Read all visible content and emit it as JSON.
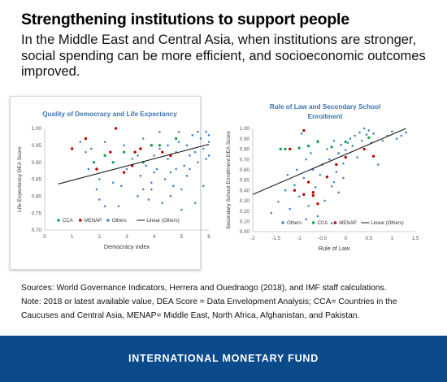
{
  "header": {
    "title": "Strengthening institutions to support people",
    "subtitle": "In the Middle East and Central Asia, when institutions are stronger, social spending can be more efficient, and socioeconomic outcomes improved."
  },
  "notes": {
    "sources": "Sources: World Governance Indicators, Herrera and Ouedraogo (2018), and IMF staff calculations.",
    "note": "Note: 2018 or latest available value, DEA Score = Data Envelopment Analysis; CCA= Countries in the Caucuses and Central Asia, MENAP= Middle East, North Africa, Afghanistan, and Pakistan."
  },
  "footer": {
    "text": "INTERNATIONAL MONETARY FUND"
  },
  "colors": {
    "cca": "#1aa35c",
    "menap": "#c00000",
    "others": "#4a86c5",
    "fit": "#1a1a1a",
    "title_blue": "#3a76b5",
    "footer_bg": "#0b4a8b"
  },
  "chart_data": [
    {
      "type": "scatter",
      "title": "Quality of Democracy and Life Expectancy",
      "xlabel": "Democracy index",
      "ylabel": "Life Expectancy DEA Score",
      "xlim": [
        0,
        6
      ],
      "ylim": [
        0.7,
        1.0
      ],
      "xticks": [
        "0",
        "1",
        "2",
        "3",
        "4",
        "5",
        "6"
      ],
      "yticks": [
        "0.70",
        "0.75",
        "0.80",
        "0.85",
        "0.90",
        "0.95",
        "1.00"
      ],
      "grid": false,
      "legend_position": "bottom-left inside",
      "legend": [
        "CCA",
        "MENAP",
        "Others",
        "Linear (Others)"
      ],
      "series": [
        {
          "name": "CCA",
          "points": [
            [
              1.8,
              0.9
            ],
            [
              2.2,
              0.92
            ],
            [
              2.9,
              0.93
            ],
            [
              3.9,
              0.95
            ],
            [
              4.2,
              0.95
            ],
            [
              4.8,
              0.97
            ],
            [
              3.6,
              0.9
            ],
            [
              2.5,
              0.9
            ]
          ]
        },
        {
          "name": "MENAP",
          "points": [
            [
              1.0,
              0.94
            ],
            [
              1.5,
              0.97
            ],
            [
              1.9,
              0.88
            ],
            [
              2.4,
              0.93
            ],
            [
              2.6,
              1.0
            ],
            [
              2.9,
              0.87
            ],
            [
              3.3,
              0.93
            ],
            [
              3.5,
              0.94
            ],
            [
              3.9,
              0.95
            ],
            [
              4.3,
              0.93
            ],
            [
              4.6,
              0.92
            ],
            [
              3.2,
              0.89
            ]
          ]
        },
        {
          "name": "Others",
          "points": [
            [
              1.3,
              0.96
            ],
            [
              1.5,
              0.93
            ],
            [
              1.6,
              0.88
            ],
            [
              1.9,
              0.82
            ],
            [
              2.0,
              0.79
            ],
            [
              2.0,
              0.85
            ],
            [
              2.2,
              0.96
            ],
            [
              2.5,
              0.84
            ],
            [
              2.8,
              0.83
            ],
            [
              2.7,
              0.77
            ],
            [
              3.0,
              0.88
            ],
            [
              3.2,
              0.91
            ],
            [
              3.4,
              0.92
            ],
            [
              3.5,
              0.86
            ],
            [
              3.6,
              0.82
            ],
            [
              3.6,
              0.97
            ],
            [
              3.7,
              0.89
            ],
            [
              3.8,
              0.79
            ],
            [
              3.9,
              0.84
            ],
            [
              4.0,
              0.92
            ],
            [
              4.1,
              0.88
            ],
            [
              4.2,
              0.94
            ],
            [
              4.3,
              0.78
            ],
            [
              4.4,
              0.85
            ],
            [
              4.5,
              0.95
            ],
            [
              4.5,
              0.91
            ],
            [
              4.6,
              0.87
            ],
            [
              4.7,
              0.83
            ],
            [
              4.8,
              0.93
            ],
            [
              4.9,
              0.96
            ],
            [
              5.0,
              0.76
            ],
            [
              5.0,
              0.82
            ],
            [
              5.1,
              0.89
            ],
            [
              5.2,
              0.95
            ],
            [
              5.3,
              0.92
            ],
            [
              5.4,
              0.98
            ],
            [
              5.5,
              0.93
            ],
            [
              5.6,
              0.9
            ],
            [
              5.7,
              0.97
            ],
            [
              5.8,
              0.94
            ],
            [
              5.9,
              0.99
            ],
            [
              6.0,
              0.96
            ],
            [
              6.0,
              0.92
            ],
            [
              6.0,
              0.98
            ],
            [
              5.6,
              0.99
            ],
            [
              5.3,
              0.88
            ],
            [
              4.9,
              0.99
            ],
            [
              4.2,
              0.99
            ],
            [
              3.9,
              0.82
            ],
            [
              3.4,
              0.8
            ],
            [
              2.2,
              0.77
            ],
            [
              5.8,
              0.83
            ],
            [
              5.5,
              0.78
            ],
            [
              4.6,
              0.8
            ],
            [
              2.9,
              0.95
            ],
            [
              1.7,
              0.94
            ],
            [
              5.9,
              0.91
            ],
            [
              5.2,
              0.86
            ],
            [
              4.0,
              0.87
            ],
            [
              4.8,
              0.88
            ]
          ]
        }
      ],
      "fit": {
        "name": "Linear (Others)",
        "x": [
          0.5,
          6.0
        ],
        "y": [
          0.836,
          0.953
        ]
      }
    },
    {
      "type": "scatter",
      "title": "Rule of Law and Secondary School Enrollment",
      "xlabel": "Rule of Law",
      "ylabel": "Secondary School Enrollment DEA Score",
      "xlim": [
        -2,
        1.5
      ],
      "ylim": [
        0,
        1.0
      ],
      "xticks": [
        "-2",
        "-1.5",
        "-1",
        "-0.5",
        "0",
        "0.5",
        "1",
        "1.5"
      ],
      "yticks": [
        "0.00",
        "0.10",
        "0.20",
        "0.30",
        "0.40",
        "0.50",
        "0.60",
        "0.70",
        "0.80",
        "0.90",
        "1.00"
      ],
      "grid": false,
      "legend_position": "bottom inside",
      "legend": [
        "Others",
        "CCA",
        "MENAP",
        "Linear (Others)"
      ],
      "series": [
        {
          "name": "CCA",
          "points": [
            [
              -1.4,
              0.8
            ],
            [
              -1.3,
              0.8
            ],
            [
              -1.0,
              0.81
            ],
            [
              -0.8,
              0.83
            ],
            [
              -0.6,
              0.87
            ],
            [
              -0.3,
              0.82
            ],
            [
              0.0,
              0.87
            ],
            [
              0.5,
              0.91
            ]
          ]
        },
        {
          "name": "MENAP",
          "points": [
            [
              -0.9,
              0.98
            ],
            [
              -1.2,
              0.8
            ],
            [
              -1.1,
              0.4
            ],
            [
              -0.9,
              0.36
            ],
            [
              -0.8,
              0.48
            ],
            [
              -0.7,
              0.35
            ],
            [
              -0.6,
              0.27
            ],
            [
              -0.4,
              0.53
            ],
            [
              -0.2,
              0.65
            ],
            [
              0.0,
              0.72
            ],
            [
              0.4,
              0.8
            ],
            [
              0.6,
              0.73
            ],
            [
              -0.7,
              0.38
            ]
          ]
        },
        {
          "name": "Others",
          "points": [
            [
              -1.6,
              0.18
            ],
            [
              -1.45,
              0.29
            ],
            [
              -1.3,
              0.4
            ],
            [
              -1.2,
              0.22
            ],
            [
              -1.1,
              0.45
            ],
            [
              -1.05,
              0.6
            ],
            [
              -1.0,
              0.34
            ],
            [
              -0.95,
              0.95
            ],
            [
              -0.9,
              0.52
            ],
            [
              -0.85,
              0.7
            ],
            [
              -0.8,
              0.25
            ],
            [
              -0.75,
              0.76
            ],
            [
              -0.7,
              0.6
            ],
            [
              -0.65,
              0.43
            ],
            [
              -0.6,
              0.88
            ],
            [
              -0.55,
              0.55
            ],
            [
              -0.5,
              0.65
            ],
            [
              -0.45,
              0.3
            ],
            [
              -0.4,
              0.8
            ],
            [
              -0.35,
              0.7
            ],
            [
              -0.3,
              0.44
            ],
            [
              -0.25,
              0.88
            ],
            [
              -0.2,
              0.58
            ],
            [
              -0.15,
              0.76
            ],
            [
              -0.1,
              0.84
            ],
            [
              -0.05,
              0.66
            ],
            [
              0.0,
              0.79
            ],
            [
              0.05,
              0.86
            ],
            [
              0.1,
              0.9
            ],
            [
              0.15,
              0.83
            ],
            [
              0.2,
              0.93
            ],
            [
              0.3,
              0.96
            ],
            [
              0.35,
              0.88
            ],
            [
              0.4,
              1.0
            ],
            [
              0.45,
              0.94
            ],
            [
              0.5,
              0.98
            ],
            [
              0.55,
              0.86
            ],
            [
              0.6,
              0.95
            ],
            [
              0.7,
              0.65
            ],
            [
              0.8,
              0.88
            ],
            [
              0.9,
              0.93
            ],
            [
              1.0,
              0.97
            ],
            [
              1.1,
              0.9
            ],
            [
              1.2,
              0.93
            ],
            [
              1.3,
              0.96
            ],
            [
              -0.25,
              0.48
            ],
            [
              -0.6,
              0.15
            ],
            [
              -0.3,
              0.08
            ],
            [
              -0.15,
              0.38
            ],
            [
              -0.05,
              0.52
            ],
            [
              0.25,
              0.72
            ],
            [
              -1.25,
              0.55
            ],
            [
              -0.85,
              0.12
            ]
          ]
        }
      ],
      "fit": {
        "name": "Linear (Others)",
        "x": [
          -2.0,
          1.3
        ],
        "y": [
          0.36,
          1.0
        ]
      }
    }
  ]
}
